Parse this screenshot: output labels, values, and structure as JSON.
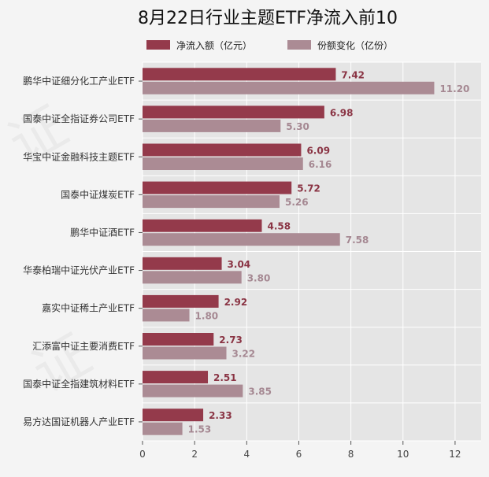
{
  "chart_data": {
    "type": "bar",
    "orientation": "horizontal",
    "title": "8月22日行业主题ETF净流入前10",
    "categories": [
      "鹏华中证细分化工产业ETF",
      "国泰中证全指证券公司ETF",
      "华宝中证金融科技主题ETF",
      "国泰中证煤炭ETF",
      "鹏华中证酒ETF",
      "华泰柏瑞中证光伏产业ETF",
      "嘉实中证稀土产业ETF",
      "汇添富中证主要消费ETF",
      "国泰中证全指建筑材料ETF",
      "易方达国证机器人产业ETF"
    ],
    "series": [
      {
        "name": "净流入额（亿元）",
        "color": "#943a4b",
        "values": [
          7.42,
          6.98,
          6.09,
          5.72,
          4.58,
          3.04,
          2.92,
          2.73,
          2.51,
          2.33
        ],
        "labels": [
          "7.42",
          "6.98",
          "6.09",
          "5.72",
          "4.58",
          "3.04",
          "2.92",
          "2.73",
          "2.51",
          "2.33"
        ]
      },
      {
        "name": "份额变化（亿份）",
        "color": "#ab8b94",
        "values": [
          11.2,
          5.3,
          6.16,
          5.26,
          7.58,
          3.8,
          1.8,
          3.22,
          3.85,
          1.53
        ],
        "labels": [
          "11.20",
          "5.30",
          "6.16",
          "5.26",
          "7.58",
          "3.80",
          "1.80",
          "3.22",
          "3.85",
          "1.53"
        ]
      }
    ],
    "xlim": [
      0,
      13
    ],
    "xticks": [
      0,
      2,
      4,
      6,
      8,
      10,
      12
    ],
    "xticklabels": [
      "0",
      "2",
      "4",
      "6",
      "8",
      "10",
      "12"
    ],
    "grid": true,
    "legend_position": "top"
  }
}
